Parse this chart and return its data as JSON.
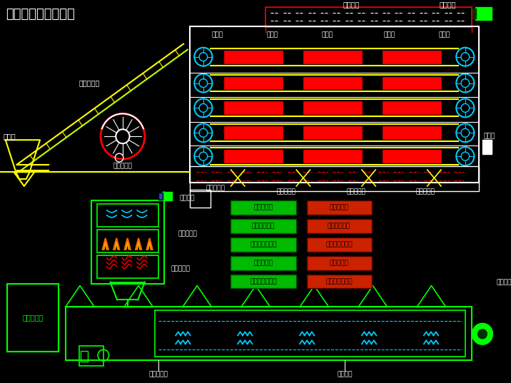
{
  "title": "脱水蔬菜带式干燥机",
  "bg_color": "#000000",
  "green": "#00FF00",
  "yellow": "#FFFF00",
  "red": "#FF0000",
  "orange": "#FF6600",
  "cyan": "#00CCFF",
  "white": "#FFFFFF",
  "btn_green": "#00BB00",
  "btn_red": "#CC2200",
  "top_labels": [
    "排湿顶",
    "排湿顶",
    "排湿顶",
    "排湿顶",
    "排湿顶"
  ],
  "valve_labels": [
    "一级调风阀",
    "二级调风阀",
    "三级调风阀"
  ],
  "green_buttons": [
    "加热【开】",
    "鼓风机【开】",
    "排湿风机【开】",
    "加料【开】",
    "传动出料【开】"
  ],
  "red_buttons": [
    "加热【关】",
    "鼓风机【关】",
    "排湿风机【关】",
    "加料【关】",
    "传动出料【关】"
  ]
}
